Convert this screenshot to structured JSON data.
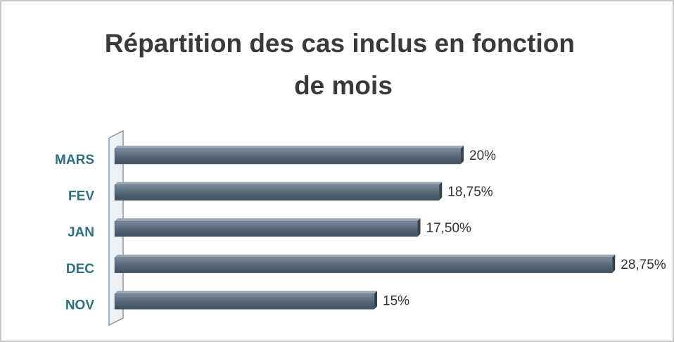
{
  "chart_data": {
    "type": "bar",
    "orientation": "horizontal",
    "title": [
      "Répartition des cas inclus en fonction",
      "de mois"
    ],
    "categories": [
      "MARS",
      "FEV",
      "JAN",
      "DEC",
      "NOV"
    ],
    "values": [
      20,
      18.75,
      17.5,
      28.75,
      15
    ],
    "value_labels": [
      "20%",
      "18,75%",
      "17,50%",
      "28,75%",
      "15%"
    ],
    "color": "#56687a"
  }
}
